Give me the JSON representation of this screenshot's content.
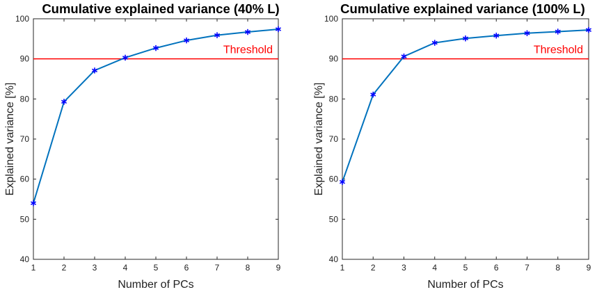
{
  "chart_data": [
    {
      "type": "line",
      "title": "Cumulative explained variance (40% L)",
      "xlabel": "Number of PCs",
      "ylabel": "Explained variance [%]",
      "x": [
        1,
        2,
        3,
        4,
        5,
        6,
        7,
        8,
        9
      ],
      "series": [
        {
          "name": "Cumulative explained variance",
          "values": [
            54.0,
            79.3,
            87.1,
            90.3,
            92.7,
            94.6,
            95.9,
            96.7,
            97.4
          ]
        }
      ],
      "threshold": {
        "label": "Threshold",
        "value": 90
      },
      "xlim": [
        1,
        9
      ],
      "ylim": [
        40,
        100
      ],
      "xticks": [
        1,
        2,
        3,
        4,
        5,
        6,
        7,
        8,
        9
      ],
      "yticks": [
        40,
        50,
        60,
        70,
        80,
        90,
        100
      ],
      "grid": false
    },
    {
      "type": "line",
      "title": "Cumulative explained variance (100% L)",
      "xlabel": "Number of PCs",
      "ylabel": "Explained variance [%]",
      "x": [
        1,
        2,
        3,
        4,
        5,
        6,
        7,
        8,
        9
      ],
      "series": [
        {
          "name": "Cumulative explained variance",
          "values": [
            59.3,
            81.1,
            90.6,
            94.0,
            95.1,
            95.8,
            96.4,
            96.8,
            97.2
          ]
        }
      ],
      "threshold": {
        "label": "Threshold",
        "value": 90
      },
      "xlim": [
        1,
        9
      ],
      "ylim": [
        40,
        100
      ],
      "xticks": [
        1,
        2,
        3,
        4,
        5,
        6,
        7,
        8,
        9
      ],
      "yticks": [
        40,
        50,
        60,
        70,
        80,
        90,
        100
      ],
      "grid": false
    }
  ],
  "colors": {
    "line": "#0072BD",
    "marker": "#0000FF",
    "threshold": "#FF0000",
    "axis": "#262626"
  }
}
